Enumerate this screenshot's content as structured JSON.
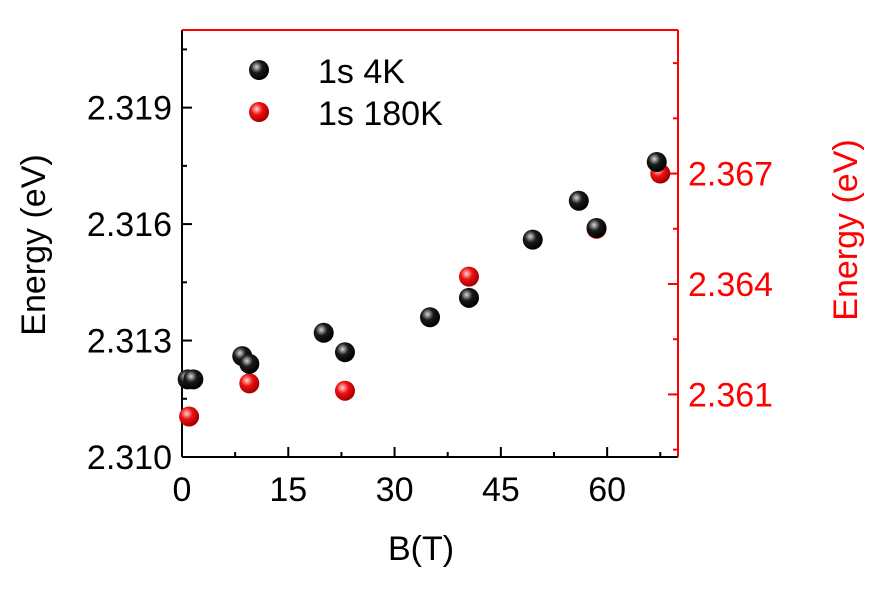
{
  "chart_data": {
    "type": "scatter",
    "xlabel": "B(T)",
    "ylabel_left": "Energy (eV)",
    "ylabel_right": "Energy (eV)",
    "xlim": [
      0,
      70
    ],
    "xticks": [
      0,
      15,
      30,
      45,
      60
    ],
    "ylim_left": [
      2.31,
      2.321
    ],
    "yticks_left": [
      "2.310",
      "2.313",
      "2.316",
      "2.319"
    ],
    "ylim_right": [
      2.3593,
      2.3709
    ],
    "yticks_right": [
      "2.361",
      "2.364",
      "2.367"
    ],
    "legend_position": "top-left",
    "grid": false,
    "colors": {
      "series_4k": "#000000",
      "series_180k": "#ff0000",
      "right_axis": "#ff0000"
    },
    "series": [
      {
        "name": "1s 4K",
        "axis": "left",
        "color": "#000000",
        "points": [
          [
            0.8,
            2.312
          ],
          [
            1.6,
            2.312
          ],
          [
            8.5,
            2.3126
          ],
          [
            9.5,
            2.3124
          ],
          [
            20.0,
            2.3132
          ],
          [
            23.0,
            2.3127
          ],
          [
            35.0,
            2.3136
          ],
          [
            40.5,
            2.3141
          ],
          [
            49.5,
            2.3156
          ],
          [
            56.0,
            2.3166
          ],
          [
            58.5,
            2.3159
          ],
          [
            67.0,
            2.3176
          ]
        ]
      },
      {
        "name": "1s 180K",
        "axis": "right",
        "color": "#ff0000",
        "points": [
          [
            1.0,
            2.3604
          ],
          [
            9.5,
            2.3613
          ],
          [
            23.0,
            2.3611
          ],
          [
            40.5,
            2.3642
          ],
          [
            58.5,
            2.3655
          ],
          [
            67.5,
            2.367
          ]
        ]
      }
    ]
  }
}
